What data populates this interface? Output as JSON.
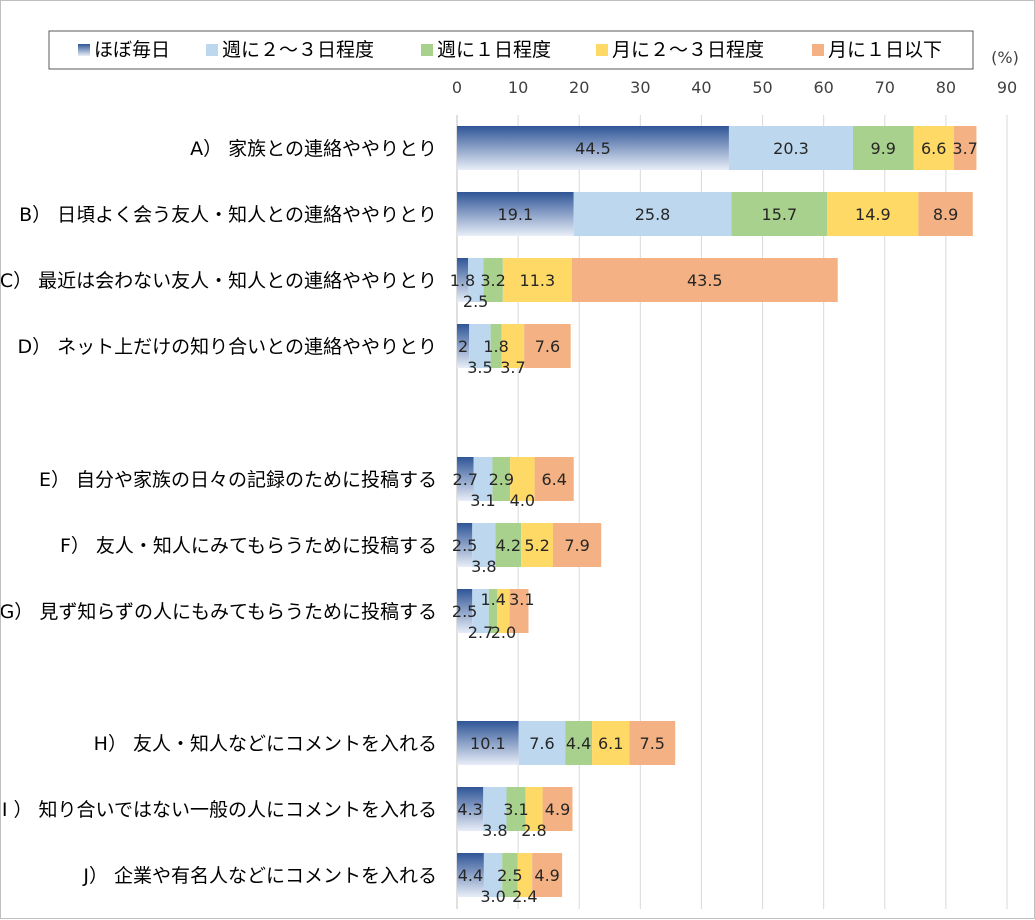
{
  "chart_data": {
    "type": "bar",
    "orientation": "horizontal",
    "stacked": true,
    "unit": "(%)",
    "xlim": [
      0,
      90
    ],
    "xticks": [
      0,
      10,
      20,
      30,
      40,
      50,
      60,
      70,
      80,
      90
    ],
    "grid": true,
    "legend_position": "top",
    "categories": [
      "A） 家族との連絡ややりとり",
      "B） 日頃よく会う友人・知人との連絡ややりとり",
      "C） 最近は会わない友人・知人との連絡ややりとり",
      "D） ネット上だけの知り合いとの連絡ややりとり",
      "E） 自分や家族の日々の記録のために投稿する",
      "F） 友人・知人にみてもらうために投稿する",
      "G） 見ず知らずの人にもみてもらうために投稿する",
      "H） 友人・知人などにコメントを入れる",
      "I ） 知り合いではない一般の人にコメントを入れる",
      "J） 企業や有名人などにコメントを入れる"
    ],
    "series": [
      {
        "name": "ほぼ毎日",
        "color": "#2f5597",
        "values": [
          44.5,
          19.1,
          1.8,
          2,
          2.7,
          2.5,
          2.5,
          10.1,
          4.3,
          4.4
        ],
        "labels": [
          "44.5",
          "19.1",
          "1.8",
          "2",
          "2.7",
          "2.5",
          "2.5",
          "10.1",
          "4.3",
          "4.4"
        ]
      },
      {
        "name": "週に２～３日程度",
        "color": "#bdd7ee",
        "values": [
          20.3,
          25.8,
          2.5,
          3.5,
          3.1,
          3.8,
          2.7,
          7.6,
          3.8,
          3.0
        ],
        "labels": [
          "20.3",
          "25.8",
          "2.5",
          "3.5",
          "3.1",
          "3.8",
          "2.7",
          "7.6",
          "3.8",
          "3.0"
        ]
      },
      {
        "name": "週に１日程度",
        "color": "#a9d18e",
        "values": [
          9.9,
          15.7,
          3.2,
          1.8,
          2.9,
          4.2,
          1.4,
          4.4,
          3.1,
          2.5
        ],
        "labels": [
          "9.9",
          "15.7",
          "3.2",
          "1.8",
          "2.9",
          "4.2",
          "1.4",
          "4.4",
          "3.1",
          "2.5"
        ]
      },
      {
        "name": "月に２～３日程度",
        "color": "#ffd966",
        "values": [
          6.6,
          14.9,
          11.3,
          3.7,
          4.0,
          5.2,
          2.0,
          6.1,
          2.8,
          2.4
        ],
        "labels": [
          "6.6",
          "14.9",
          "11.3",
          "3.7",
          "4.0",
          "5.2",
          "2.0",
          "6.1",
          "2.8",
          "2.4"
        ]
      },
      {
        "name": "月に１日以下",
        "color": "#f4b183",
        "values": [
          3.7,
          8.9,
          43.5,
          7.6,
          6.4,
          7.9,
          3.1,
          7.5,
          4.9,
          4.9
        ],
        "labels": [
          "3.7",
          "8.9",
          "43.5",
          "7.6",
          "6.4",
          "7.9",
          "3.1",
          "7.5",
          "4.9",
          "4.9"
        ]
      }
    ]
  }
}
